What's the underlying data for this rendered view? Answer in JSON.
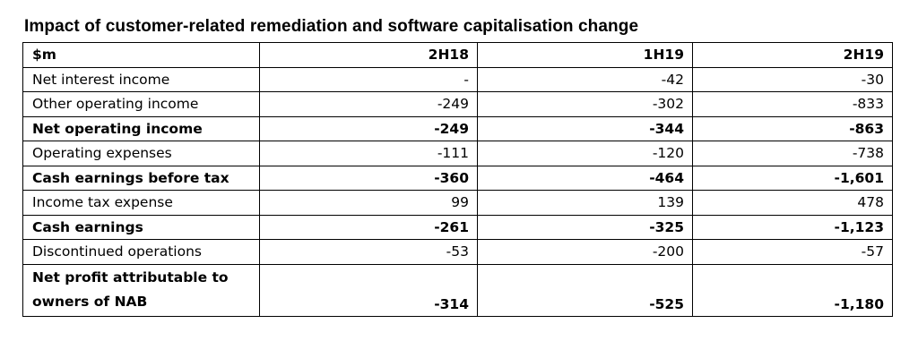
{
  "title": "Impact of customer-related remediation and software capitalisation change",
  "table": {
    "header": [
      "$m",
      "2H18",
      "1H19",
      "2H19"
    ],
    "rows": [
      {
        "label": "Net interest income",
        "bold": false,
        "values": [
          "-",
          "-42",
          "-30"
        ]
      },
      {
        "label": "Other operating income",
        "bold": false,
        "values": [
          "-249",
          "-302",
          "-833"
        ]
      },
      {
        "label": "Net operating income",
        "bold": true,
        "values": [
          "-249",
          "-344",
          "-863"
        ]
      },
      {
        "label": "Operating expenses",
        "bold": false,
        "values": [
          "-111",
          "-120",
          "-738"
        ]
      },
      {
        "label": "Cash earnings before tax",
        "bold": true,
        "values": [
          "-360",
          "-464",
          "-1,601"
        ]
      },
      {
        "label": "Income tax expense",
        "bold": false,
        "values": [
          "99",
          "139",
          "478"
        ]
      },
      {
        "label": "Cash earnings",
        "bold": true,
        "values": [
          "-261",
          "-325",
          "-1,123"
        ]
      },
      {
        "label": "Discontinued operations",
        "bold": false,
        "values": [
          "-53",
          "-200",
          "-57"
        ]
      },
      {
        "label": "Net profit attributable to owners of NAB",
        "label_lines": [
          "Net profit attributable to",
          "owners of NAB"
        ],
        "bold": true,
        "values": [
          "-314",
          "-525",
          "-1,180"
        ]
      }
    ]
  }
}
